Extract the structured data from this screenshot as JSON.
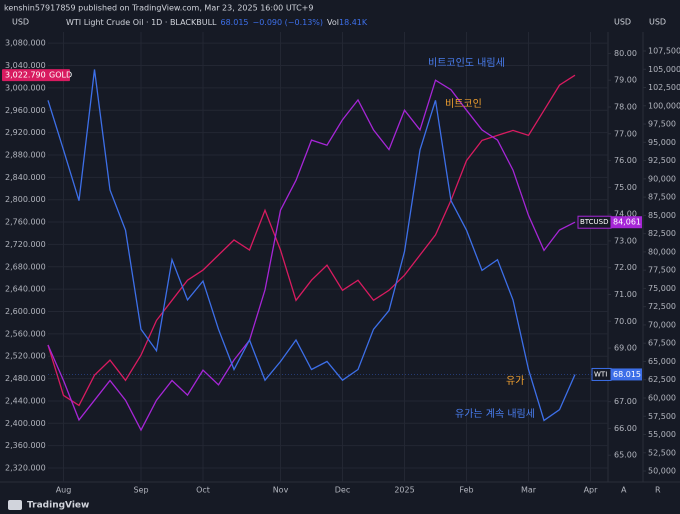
{
  "chart_data": {
    "type": "line",
    "subtitle": "kenshin57917859 published on TradingView.com, Mar 23, 2025 16:00 UTC+9",
    "title": "WTI Light Crude Oil · 1D · BLACKBULL",
    "legend": {
      "last": "68.015",
      "change": "−0.090 (−0.13%)",
      "volume_label": "Vol",
      "volume": "18.41K"
    },
    "axis_units": [
      "USD",
      "USD",
      "USD"
    ],
    "axis_buttons": [
      "A",
      "R"
    ],
    "footer": "TradingView",
    "grid": true,
    "categories": [
      null,
      "Aug",
      null,
      null,
      null,
      null,
      "Sep",
      null,
      null,
      null,
      "Oct",
      null,
      null,
      null,
      null,
      "Nov",
      null,
      null,
      null,
      "Dec",
      null,
      null,
      null,
      "2025",
      null,
      null,
      null,
      "Feb",
      null,
      null,
      null,
      "Mar",
      null,
      null,
      null,
      "Apr"
    ],
    "ylim": [
      2295,
      3100
    ],
    "yticks": [
      {
        "value": 2320,
        "label": "2,320.000"
      },
      {
        "value": 2360,
        "label": "2,360.000"
      },
      {
        "value": 2400,
        "label": "2,400.000"
      },
      {
        "value": 2440,
        "label": "2,440.000"
      },
      {
        "value": 2480,
        "label": "2,480.000"
      },
      {
        "value": 2520,
        "label": "2,520.000"
      },
      {
        "value": 2560,
        "label": "2,560.000"
      },
      {
        "value": 2600,
        "label": "2,600.000"
      },
      {
        "value": 2640,
        "label": "2,640.000"
      },
      {
        "value": 2680,
        "label": "2,680.000"
      },
      {
        "value": 2720,
        "label": "2,720.000"
      },
      {
        "value": 2760,
        "label": "2,760.000"
      },
      {
        "value": 2800,
        "label": "2,800.000"
      },
      {
        "value": 2840,
        "label": "2,840.000"
      },
      {
        "value": 2880,
        "label": "2,880.000"
      },
      {
        "value": 2920,
        "label": "2,920.000"
      },
      {
        "value": 2960,
        "label": "2,960.000"
      },
      {
        "value": 3000,
        "label": "3,000.000"
      },
      {
        "value": 3040,
        "label": "3,040.000"
      },
      {
        "value": 3080,
        "label": "3,080.000"
      }
    ],
    "y2lim": [
      64,
      80.8
    ],
    "y2ticks": [
      {
        "value": 65,
        "label": "65.00"
      },
      {
        "value": 66,
        "label": "66.00"
      },
      {
        "value": 67,
        "label": "67.00"
      },
      {
        "value": 68,
        "label": "68.00"
      },
      {
        "value": 69,
        "label": "69.00"
      },
      {
        "value": 70,
        "label": "70.00"
      },
      {
        "value": 71,
        "label": "71.00"
      },
      {
        "value": 72,
        "label": "72.00"
      },
      {
        "value": 73,
        "label": "73.00"
      },
      {
        "value": 74,
        "label": "74.00"
      },
      {
        "value": 75,
        "label": "75.00"
      },
      {
        "value": 76,
        "label": "76.00"
      },
      {
        "value": 77,
        "label": "77.00"
      },
      {
        "value": 78,
        "label": "78.00"
      },
      {
        "value": 79,
        "label": "79.00"
      },
      {
        "value": 80,
        "label": "80.00"
      }
    ],
    "y3lim": [
      48500,
      110100
    ],
    "y3ticks": [
      {
        "value": 50000,
        "label": "50,000"
      },
      {
        "value": 52500,
        "label": "52,500"
      },
      {
        "value": 55000,
        "label": "55,000"
      },
      {
        "value": 57500,
        "label": "57,500"
      },
      {
        "value": 60000,
        "label": "60,000"
      },
      {
        "value": 62500,
        "label": "62,500"
      },
      {
        "value": 65000,
        "label": "65,000"
      },
      {
        "value": 67500,
        "label": "67,500"
      },
      {
        "value": 70000,
        "label": "70,000"
      },
      {
        "value": 72500,
        "label": "72,500"
      },
      {
        "value": 75000,
        "label": "75,000"
      },
      {
        "value": 77500,
        "label": "77,500"
      },
      {
        "value": 80000,
        "label": "80,000"
      },
      {
        "value": 82500,
        "label": "82,500"
      },
      {
        "value": 85000,
        "label": "85,000"
      },
      {
        "value": 87500,
        "label": "87,500"
      },
      {
        "value": 90000,
        "label": "90,000"
      },
      {
        "value": 92500,
        "label": "92,500"
      },
      {
        "value": 95000,
        "label": "95,000"
      },
      {
        "value": 97500,
        "label": "97,500"
      },
      {
        "value": 100000,
        "label": "100,000"
      },
      {
        "value": 102500,
        "label": "102,500"
      },
      {
        "value": 105000,
        "label": "105,000"
      },
      {
        "value": 107500,
        "label": "107,500"
      }
    ],
    "series": [
      {
        "name": "GOLD",
        "last_label": "3,022.790",
        "color": "#d81b60",
        "axis": "y",
        "values": [
          2540,
          2450,
          2432,
          2486,
          2513,
          2477,
          2522,
          2584,
          2620,
          2656,
          2674,
          2701,
          2728,
          2710,
          2781,
          2710,
          2620,
          2656,
          2683,
          2638,
          2656,
          2620,
          2638,
          2665,
          2701,
          2737,
          2799,
          2870,
          2906,
          2915,
          2924,
          2915,
          2960,
          3005,
          3022.79,
          null
        ]
      },
      {
        "name": "BTCUSD",
        "last_label": "84,061",
        "color": "#a626d6",
        "axis": "y3",
        "values": [
          67250,
          62400,
          57000,
          59700,
          62400,
          59700,
          55600,
          59700,
          62400,
          60400,
          63800,
          61800,
          65200,
          67900,
          74800,
          85700,
          89800,
          95300,
          94600,
          98100,
          100800,
          96700,
          94000,
          99400,
          96700,
          103500,
          102200,
          99400,
          96700,
          95300,
          91200,
          85000,
          80200,
          83000,
          84061,
          null
        ]
      },
      {
        "name": "WTI",
        "last_label": "68.015",
        "color": "#3d6fe8",
        "axis": "y2",
        "values": [
          78.25,
          76.4,
          74.5,
          79.4,
          74.9,
          73.4,
          69.7,
          68.9,
          72.3,
          70.8,
          71.5,
          69.7,
          68.2,
          69.3,
          67.8,
          68.5,
          69.3,
          68.2,
          68.5,
          67.8,
          68.2,
          69.7,
          70.4,
          72.6,
          76.4,
          78.25,
          74.5,
          73.4,
          71.9,
          72.3,
          70.8,
          68.2,
          66.3,
          66.7,
          68.015,
          null
        ]
      }
    ],
    "annotations": [
      {
        "text": "비트코인도 내림세",
        "color": "#4a7ef0"
      },
      {
        "text": "비트코인",
        "color": "#f0a030"
      },
      {
        "text": "유가",
        "color": "#f0a030"
      },
      {
        "text": "유가는 계속 내림세",
        "color": "#4a7ef0"
      }
    ]
  }
}
